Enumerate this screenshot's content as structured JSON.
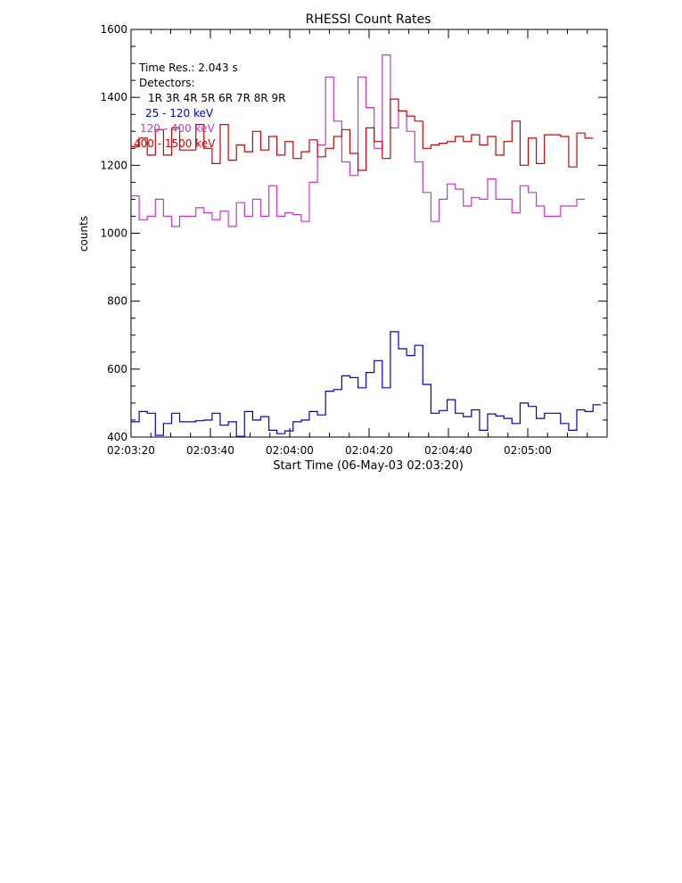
{
  "chart_data": {
    "type": "line",
    "step": true,
    "title": "RHESSI Count Rates",
    "xlabel": "Start Time (06-May-03 02:03:20)",
    "ylabel": "counts",
    "xlim": [
      0,
      120
    ],
    "ylim": [
      400,
      1600
    ],
    "x_ticks": [
      {
        "t": 0,
        "label": "02:03:20"
      },
      {
        "t": 20,
        "label": "02:03:40"
      },
      {
        "t": 40,
        "label": "02:04:00"
      },
      {
        "t": 60,
        "label": "02:04:20"
      },
      {
        "t": 80,
        "label": "02:04:40"
      },
      {
        "t": 100,
        "label": "02:05:00"
      }
    ],
    "y_ticks": [
      400,
      600,
      800,
      1000,
      1200,
      1400,
      1600
    ],
    "annotations": {
      "time_res": "Time Res.: 2.043 s",
      "detectors_label": "Detectors:",
      "detectors": "1R 3R 4R 5R 6R 7R 8R 9R"
    },
    "bin_seconds": 2.043,
    "series": [
      {
        "name": "25 - 120 keV",
        "color": "#0000cc",
        "values": [
          445,
          475,
          470,
          405,
          440,
          470,
          445,
          445,
          448,
          450,
          470,
          435,
          445,
          402,
          475,
          450,
          460,
          420,
          410,
          418,
          445,
          450,
          475,
          465,
          535,
          540,
          580,
          575,
          545,
          590,
          625,
          545,
          710,
          660,
          640,
          670,
          555,
          470,
          478,
          510,
          470,
          460,
          480,
          420,
          468,
          462,
          455,
          440,
          500,
          490,
          455,
          470,
          470,
          440,
          420,
          480,
          475,
          495
        ]
      },
      {
        "name": "120 - 400 keV",
        "color": "#cc33cc",
        "values": [
          1110,
          1040,
          1050,
          1100,
          1050,
          1020,
          1050,
          1050,
          1075,
          1060,
          1040,
          1065,
          1020,
          1090,
          1050,
          1100,
          1050,
          1140,
          1050,
          1060,
          1055,
          1035,
          1150,
          1260,
          1460,
          1330,
          1210,
          1170,
          1460,
          1370,
          1250,
          1525,
          1310,
          1360,
          1300,
          1210,
          1120,
          1035,
          1100,
          1145,
          1130,
          1080,
          1105,
          1100,
          1160,
          1100,
          1100,
          1060,
          1140,
          1120,
          1080,
          1050,
          1050,
          1080,
          1080,
          1100
        ]
      },
      {
        "name": "400 - 1500 keV",
        "color": "#cc0000",
        "values": [
          1255,
          1280,
          1230,
          1305,
          1230,
          1310,
          1245,
          1245,
          1320,
          1250,
          1205,
          1320,
          1215,
          1260,
          1240,
          1300,
          1245,
          1285,
          1230,
          1270,
          1220,
          1240,
          1275,
          1225,
          1250,
          1285,
          1305,
          1235,
          1185,
          1310,
          1270,
          1220,
          1395,
          1360,
          1345,
          1330,
          1250,
          1260,
          1265,
          1270,
          1285,
          1270,
          1290,
          1260,
          1285,
          1230,
          1270,
          1330,
          1200,
          1280,
          1205,
          1290,
          1290,
          1285,
          1195,
          1295,
          1280
        ]
      }
    ]
  }
}
